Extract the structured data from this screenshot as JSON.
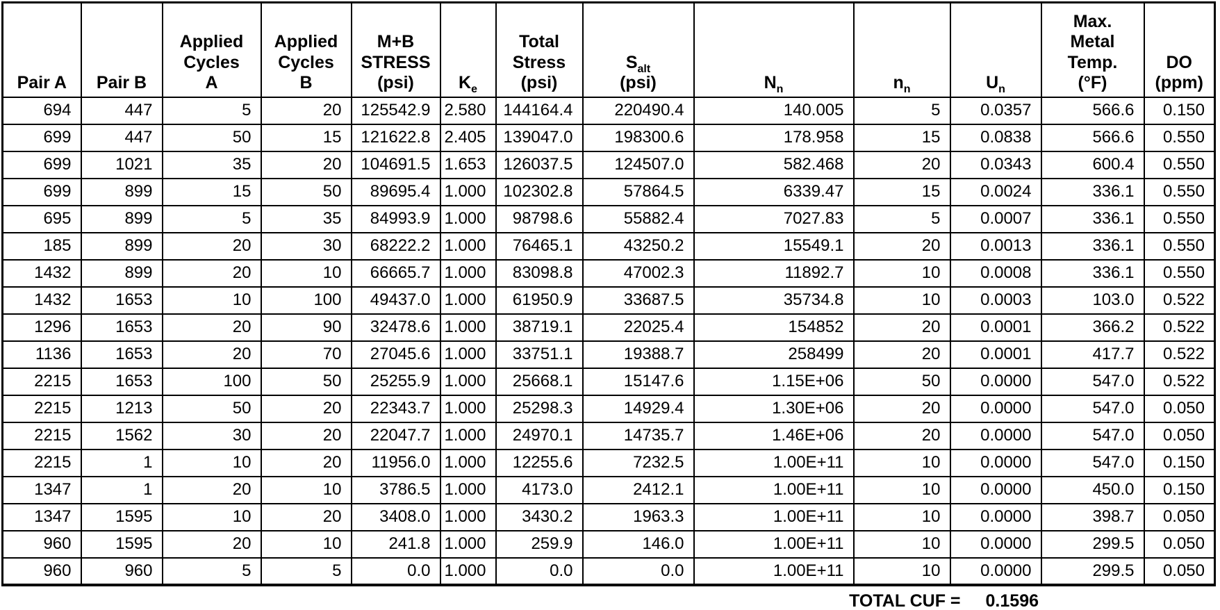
{
  "chart_data": {
    "type": "table",
    "title": "Fatigue load-pair cumulative usage factor table",
    "columns": [
      {
        "id": "pair-a",
        "name": "Pair A",
        "segments": [
          {
            "t": "Pair A"
          }
        ]
      },
      {
        "id": "pair-b",
        "name": "Pair B",
        "segments": [
          {
            "t": "Pair B"
          }
        ]
      },
      {
        "id": "cycles-a",
        "name": "Applied Cycles A",
        "segments": [
          {
            "t": "Applied\nCycles\nA"
          }
        ]
      },
      {
        "id": "cycles-b",
        "name": "Applied Cycles B",
        "segments": [
          {
            "t": "Applied\nCycles\nB"
          }
        ]
      },
      {
        "id": "mb-stress",
        "name": "M+B STRESS (psi)",
        "segments": [
          {
            "t": "M+B\nSTRESS\n(psi)"
          }
        ]
      },
      {
        "id": "ke",
        "name": "Ke",
        "segments": [
          {
            "t": "K"
          },
          {
            "sub": "e"
          }
        ]
      },
      {
        "id": "total-stress",
        "name": "Total Stress (psi)",
        "segments": [
          {
            "t": "Total\nStress\n(psi)"
          }
        ]
      },
      {
        "id": "salt",
        "name": "Salt (psi)",
        "segments": [
          {
            "t": "S"
          },
          {
            "sub": "alt"
          },
          {
            "t": "\n(psi)"
          }
        ]
      },
      {
        "id": "n-n",
        "name": "Nn",
        "segments": [
          {
            "t": "N"
          },
          {
            "sub": "n"
          }
        ]
      },
      {
        "id": "n-small",
        "name": "nn",
        "segments": [
          {
            "t": "n"
          },
          {
            "sub": "n"
          }
        ]
      },
      {
        "id": "u-n",
        "name": "Un",
        "segments": [
          {
            "t": "U"
          },
          {
            "sub": "n"
          }
        ]
      },
      {
        "id": "max-metal-temp",
        "name": "Max. Metal Temp. (°F)",
        "segments": [
          {
            "t": "Max.\nMetal\nTemp.\n(°F)"
          }
        ]
      },
      {
        "id": "do-ppm",
        "name": "DO (ppm)",
        "segments": [
          {
            "t": "DO\n(ppm)"
          }
        ]
      }
    ],
    "rows": [
      [
        "694",
        "447",
        "5",
        "20",
        "125542.9",
        "2.580",
        "144164.4",
        "220490.4",
        "140.005",
        "5",
        "0.0357",
        "566.6",
        "0.150"
      ],
      [
        "699",
        "447",
        "50",
        "15",
        "121622.8",
        "2.405",
        "139047.0",
        "198300.6",
        "178.958",
        "15",
        "0.0838",
        "566.6",
        "0.550"
      ],
      [
        "699",
        "1021",
        "35",
        "20",
        "104691.5",
        "1.653",
        "126037.5",
        "124507.0",
        "582.468",
        "20",
        "0.0343",
        "600.4",
        "0.550"
      ],
      [
        "699",
        "899",
        "15",
        "50",
        "89695.4",
        "1.000",
        "102302.8",
        "57864.5",
        "6339.47",
        "15",
        "0.0024",
        "336.1",
        "0.550"
      ],
      [
        "695",
        "899",
        "5",
        "35",
        "84993.9",
        "1.000",
        "98798.6",
        "55882.4",
        "7027.83",
        "5",
        "0.0007",
        "336.1",
        "0.550"
      ],
      [
        "185",
        "899",
        "20",
        "30",
        "68222.2",
        "1.000",
        "76465.1",
        "43250.2",
        "15549.1",
        "20",
        "0.0013",
        "336.1",
        "0.550"
      ],
      [
        "1432",
        "899",
        "20",
        "10",
        "66665.7",
        "1.000",
        "83098.8",
        "47002.3",
        "11892.7",
        "10",
        "0.0008",
        "336.1",
        "0.550"
      ],
      [
        "1432",
        "1653",
        "10",
        "100",
        "49437.0",
        "1.000",
        "61950.9",
        "33687.5",
        "35734.8",
        "10",
        "0.0003",
        "103.0",
        "0.522"
      ],
      [
        "1296",
        "1653",
        "20",
        "90",
        "32478.6",
        "1.000",
        "38719.1",
        "22025.4",
        "154852",
        "20",
        "0.0001",
        "366.2",
        "0.522"
      ],
      [
        "1136",
        "1653",
        "20",
        "70",
        "27045.6",
        "1.000",
        "33751.1",
        "19388.7",
        "258499",
        "20",
        "0.0001",
        "417.7",
        "0.522"
      ],
      [
        "2215",
        "1653",
        "100",
        "50",
        "25255.9",
        "1.000",
        "25668.1",
        "15147.6",
        "1.15E+06",
        "50",
        "0.0000",
        "547.0",
        "0.522"
      ],
      [
        "2215",
        "1213",
        "50",
        "20",
        "22343.7",
        "1.000",
        "25298.3",
        "14929.4",
        "1.30E+06",
        "20",
        "0.0000",
        "547.0",
        "0.050"
      ],
      [
        "2215",
        "1562",
        "30",
        "20",
        "22047.7",
        "1.000",
        "24970.1",
        "14735.7",
        "1.46E+06",
        "20",
        "0.0000",
        "547.0",
        "0.050"
      ],
      [
        "2215",
        "1",
        "10",
        "20",
        "11956.0",
        "1.000",
        "12255.6",
        "7232.5",
        "1.00E+11",
        "10",
        "0.0000",
        "547.0",
        "0.150"
      ],
      [
        "1347",
        "1",
        "20",
        "10",
        "3786.5",
        "1.000",
        "4173.0",
        "2412.1",
        "1.00E+11",
        "10",
        "0.0000",
        "450.0",
        "0.150"
      ],
      [
        "1347",
        "1595",
        "10",
        "20",
        "3408.0",
        "1.000",
        "3430.2",
        "1963.3",
        "1.00E+11",
        "10",
        "0.0000",
        "398.7",
        "0.050"
      ],
      [
        "960",
        "1595",
        "20",
        "10",
        "241.8",
        "1.000",
        "259.9",
        "146.0",
        "1.00E+11",
        "10",
        "0.0000",
        "299.5",
        "0.050"
      ],
      [
        "960",
        "960",
        "5",
        "5",
        "0.0",
        "1.000",
        "0.0",
        "0.0",
        "1.00E+11",
        "10",
        "0.0000",
        "299.5",
        "0.050"
      ]
    ],
    "footer": {
      "label": "TOTAL CUF =",
      "value": "0.1596"
    },
    "layout_hints": {
      "grid": "all-borders-black",
      "header_align": "center-bottom",
      "cell_align": "right",
      "background": "#ffffff",
      "text_color": "#000000"
    }
  }
}
